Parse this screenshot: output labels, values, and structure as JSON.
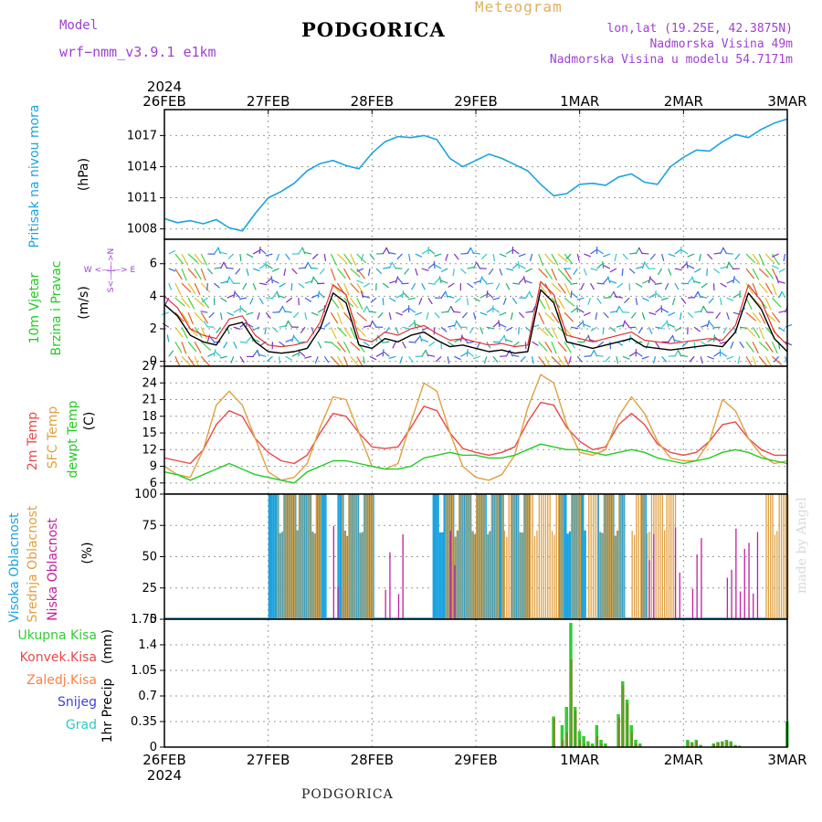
{
  "header": {
    "title": "PODGORICA",
    "meteogram_label": "Meteogram",
    "model_label": "Model",
    "model_name": "wrf−nmm_v3.9.1  e1km",
    "lonlat": "lon,lat (19.25E, 42.3875N)",
    "elevation": "Nadmorska Visina 49m",
    "elevation_model": "Nadmorska Visina u modelu 54.7171m",
    "bottom_title": "PODGORICA",
    "credit": "made by Angel"
  },
  "colors": {
    "pressure": "#1ba3e0",
    "wind_speed": "#000000",
    "wind_gust": "#e03030",
    "temp_2m": "#e84848",
    "sfc_temp": "#e0a040",
    "dewpoint": "#22cc22",
    "high_cloud": "#1ba3e0",
    "mid_cloud": "#e0a040",
    "low_cloud": "#c020a0",
    "total_precip": "#33cc33",
    "conv_precip": "#e84848",
    "frozen_precip": "#ff8040",
    "snow": "#4040e0",
    "hail": "#30c8c8",
    "axes_label_purple": "#a040d0"
  },
  "chart_data": [
    {
      "type": "line",
      "name": "pressure",
      "ylabel_1": "Pritisak na nivou mora",
      "ylabel_2": "(hPa)",
      "yticks": [
        1008,
        1011,
        1014,
        1017
      ],
      "ylim": [
        1007.0,
        1019.5
      ],
      "x_day_ticks": [
        "26FEB",
        "27FEB",
        "28FEB",
        "29FEB",
        "1MAR",
        "2MAR",
        "3MAR"
      ],
      "x_year": "2024",
      "grid": true,
      "x": [
        0,
        3,
        6,
        9,
        12,
        15,
        18,
        21,
        24,
        27,
        30,
        33,
        36,
        39,
        42,
        45,
        48,
        51,
        54,
        57,
        60,
        63,
        66,
        69,
        72,
        75,
        78,
        81,
        84,
        87,
        90,
        93,
        96,
        99,
        102,
        105,
        108,
        111,
        114,
        117,
        120,
        123,
        126,
        129,
        132,
        135,
        138,
        141,
        144
      ],
      "values": [
        1009.0,
        1008.6,
        1008.8,
        1008.5,
        1008.9,
        1008.1,
        1007.8,
        1009.5,
        1011.0,
        1011.6,
        1012.4,
        1013.6,
        1014.3,
        1014.6,
        1014.1,
        1013.8,
        1015.3,
        1016.4,
        1016.9,
        1016.8,
        1017.0,
        1016.6,
        1014.8,
        1014.0,
        1014.6,
        1015.2,
        1014.8,
        1014.2,
        1013.6,
        1012.3,
        1011.2,
        1011.4,
        1012.3,
        1012.4,
        1012.2,
        1013.0,
        1013.3,
        1012.5,
        1012.3,
        1014.0,
        1014.9,
        1015.6,
        1015.5,
        1016.4,
        1017.1,
        1016.8,
        1017.6,
        1018.2,
        1018.6
      ]
    },
    {
      "type": "line",
      "name": "wind",
      "ylabel_1": "10m Vjetar",
      "ylabel_2": "Brzina i Pravac",
      "ylabel_3": "(m/s)",
      "compass": "W <—|—> E",
      "compass_ns": "S<—|—>N",
      "yticks": [
        0,
        2,
        4,
        6
      ],
      "ylim": [
        -0.3,
        7.5
      ],
      "grid": true,
      "x": [
        0,
        3,
        6,
        9,
        12,
        15,
        18,
        21,
        24,
        27,
        30,
        33,
        36,
        39,
        42,
        45,
        48,
        51,
        54,
        57,
        60,
        63,
        66,
        69,
        72,
        75,
        78,
        81,
        84,
        87,
        90,
        93,
        96,
        99,
        102,
        105,
        108,
        111,
        114,
        117,
        120,
        123,
        126,
        129,
        132,
        135,
        138,
        141,
        144
      ],
      "series": [
        {
          "name": "brzina",
          "values": [
            3.5,
            2.8,
            1.6,
            1.2,
            1.0,
            2.2,
            2.4,
            1.2,
            0.6,
            0.5,
            0.6,
            0.8,
            2.0,
            4.2,
            3.6,
            1.0,
            0.8,
            1.4,
            1.2,
            1.6,
            1.8,
            1.3,
            0.9,
            1.0,
            0.8,
            0.6,
            0.7,
            0.5,
            0.6,
            4.4,
            3.6,
            1.2,
            1.0,
            0.8,
            1.0,
            1.2,
            1.4,
            0.9,
            0.8,
            0.7,
            0.8,
            0.9,
            1.0,
            0.9,
            1.8,
            4.2,
            3.2,
            1.4,
            0.6
          ]
        },
        {
          "name": "udar",
          "values": [
            4.0,
            3.3,
            2.0,
            1.6,
            1.4,
            2.6,
            2.8,
            1.6,
            1.0,
            0.9,
            1.0,
            1.2,
            2.4,
            4.7,
            4.1,
            1.4,
            1.2,
            1.8,
            1.6,
            2.0,
            2.2,
            1.7,
            1.3,
            1.4,
            1.2,
            1.0,
            1.1,
            0.9,
            1.0,
            4.9,
            4.1,
            1.6,
            1.4,
            1.2,
            1.4,
            1.6,
            1.8,
            1.3,
            1.2,
            1.1,
            1.2,
            1.3,
            1.4,
            1.3,
            2.2,
            4.7,
            3.7,
            1.8,
            1.0
          ]
        }
      ]
    },
    {
      "type": "line",
      "name": "temperature",
      "ylabel_1": "2m Temp",
      "ylabel_2": "SFC Temp",
      "ylabel_3": "dewpt Temp",
      "ylabel_4": "(C)",
      "yticks": [
        6,
        9,
        12,
        15,
        18,
        21,
        24,
        27
      ],
      "ylim": [
        4.0,
        27.0
      ],
      "grid": true,
      "x": [
        0,
        3,
        6,
        9,
        12,
        15,
        18,
        21,
        24,
        27,
        30,
        33,
        36,
        39,
        42,
        45,
        48,
        51,
        54,
        57,
        60,
        63,
        66,
        69,
        72,
        75,
        78,
        81,
        84,
        87,
        90,
        93,
        96,
        99,
        102,
        105,
        108,
        111,
        114,
        117,
        120,
        123,
        126,
        129,
        132,
        135,
        138,
        141,
        144
      ],
      "series": [
        {
          "name": "2m Temp",
          "values": [
            10.5,
            10.0,
            9.5,
            12.0,
            16.5,
            19.0,
            18.0,
            14.0,
            11.5,
            10.0,
            9.5,
            11.0,
            15.0,
            18.5,
            18.0,
            15.0,
            12.5,
            12.2,
            12.5,
            16.0,
            19.8,
            19.0,
            15.0,
            12.2,
            11.5,
            11.0,
            11.5,
            12.5,
            17.0,
            20.5,
            20.0,
            16.0,
            13.5,
            12.0,
            12.5,
            16.5,
            18.5,
            16.5,
            13.0,
            11.5,
            11.0,
            11.5,
            13.5,
            16.5,
            17.0,
            14.0,
            12.0,
            11.0,
            11.0
          ]
        },
        {
          "name": "SFC Temp",
          "values": [
            9.0,
            7.5,
            7.0,
            12.0,
            20.0,
            22.5,
            20.0,
            14.0,
            8.0,
            6.5,
            7.0,
            9.5,
            16.0,
            21.5,
            21.0,
            15.0,
            9.0,
            8.5,
            9.5,
            17.0,
            24.0,
            22.5,
            15.0,
            9.0,
            7.0,
            6.5,
            7.5,
            11.0,
            19.5,
            25.5,
            24.0,
            16.5,
            11.5,
            11.0,
            12.0,
            18.0,
            21.5,
            18.5,
            13.5,
            10.5,
            10.0,
            10.0,
            13.5,
            21.0,
            19.0,
            14.0,
            11.0,
            9.5,
            10.0
          ]
        },
        {
          "name": "dewpt Temp",
          "values": [
            8.0,
            7.5,
            6.5,
            7.5,
            8.5,
            9.5,
            8.5,
            7.5,
            7.0,
            6.5,
            6.0,
            8.0,
            9.0,
            10.0,
            10.0,
            9.5,
            9.0,
            8.5,
            8.5,
            9.0,
            10.5,
            11.0,
            11.5,
            11.0,
            11.0,
            10.5,
            10.5,
            11.0,
            12.0,
            13.0,
            12.5,
            12.0,
            12.0,
            11.5,
            11.0,
            11.5,
            12.0,
            11.5,
            10.5,
            10.0,
            9.5,
            10.0,
            10.5,
            11.5,
            12.0,
            11.5,
            10.5,
            10.0,
            9.5
          ]
        }
      ]
    },
    {
      "type": "bar",
      "name": "cloud",
      "ylabel_1": "Visoka Oblacnost",
      "ylabel_2": "Srednja Oblacnost",
      "ylabel_3": "Niska Oblacnost",
      "ylabel_4": "(%)",
      "yticks": [
        0,
        25,
        50,
        75,
        100
      ],
      "ylim": [
        0,
        100
      ],
      "grid": true,
      "segments": [
        {
          "name": "Visoka",
          "intervals": [
            [
              24,
              37
            ],
            [
              40,
              48
            ],
            [
              62,
              78
            ],
            [
              80,
              84
            ],
            [
              91,
              97
            ],
            [
              100,
              106
            ],
            [
              110,
              111
            ]
          ],
          "value": 100
        },
        {
          "name": "Srednja",
          "intervals": [
            [
              26,
              36
            ],
            [
              41,
              48
            ],
            [
              65,
              77
            ],
            [
              78,
              92
            ],
            [
              94,
              96
            ],
            [
              98,
              106
            ],
            [
              108,
              118
            ],
            [
              139,
              144
            ]
          ],
          "value": 100
        },
        {
          "name": "Niska",
          "intervals": [
            [
              39,
              40
            ],
            [
              51,
              52
            ],
            [
              54,
              55
            ],
            [
              66,
              67
            ],
            [
              112,
              113
            ],
            [
              118,
              119
            ],
            [
              122,
              124
            ],
            [
              130,
              131
            ],
            [
              132,
              133
            ],
            [
              134,
              135
            ],
            [
              136,
              137
            ]
          ],
          "value": 60
        }
      ]
    },
    {
      "type": "bar",
      "name": "precip",
      "ylabel_1": "1hr Precip",
      "ylabel_2": "(mm)",
      "legend": [
        "Ukupna Kisa",
        "Konvek.Kisa",
        "Zaledj.Kisa",
        "Snijeg",
        "Grad"
      ],
      "yticks": [
        0,
        0.35,
        0.7,
        1.05,
        1.4,
        1.75
      ],
      "ytick_labels": [
        "0",
        "0.35",
        "0.7",
        "1.05",
        "1.4",
        "1.75"
      ],
      "ylim": [
        0,
        1.75
      ],
      "grid": true,
      "x": [
        90,
        92,
        93,
        94,
        95,
        96,
        97,
        98,
        99,
        100,
        101,
        102,
        105,
        106,
        107,
        108,
        109,
        110,
        121,
        122,
        123,
        124,
        127,
        128,
        129,
        130,
        131,
        132,
        133,
        144
      ],
      "series": [
        {
          "name": "Ukupna Kisa",
          "values": [
            0.42,
            0.3,
            0.55,
            1.7,
            0.55,
            0.22,
            0.15,
            0.08,
            0.05,
            0.3,
            0.1,
            0.05,
            0.45,
            0.9,
            0.65,
            0.3,
            0.1,
            0.05,
            0.1,
            0.07,
            0.1,
            0.03,
            0.05,
            0.07,
            0.08,
            0.1,
            0.08,
            0.03,
            0.02,
            0.35
          ]
        },
        {
          "name": "Konvek.Kisa",
          "values": [
            0.4,
            0.1,
            0.2,
            1.2,
            0.5,
            0.1,
            0.05,
            0.03,
            0.02,
            0.15,
            0.05,
            0.02,
            0.4,
            0.85,
            0.6,
            0.2,
            0.05,
            0.02,
            0.08,
            0.05,
            0.08,
            0.02,
            0.04,
            0.06,
            0.07,
            0.08,
            0.06,
            0.02,
            0.01,
            0.02
          ]
        }
      ]
    }
  ]
}
